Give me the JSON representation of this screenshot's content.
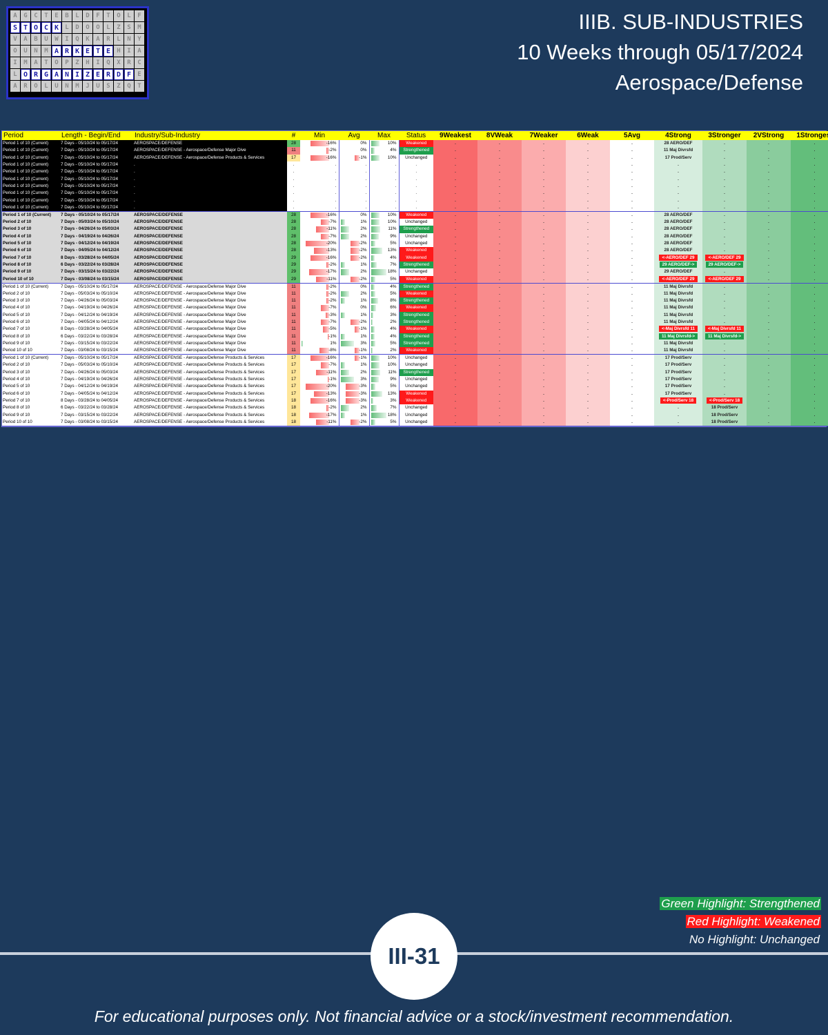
{
  "logo": {
    "rows": [
      [
        "A",
        "G",
        "C",
        "T",
        "E",
        "B",
        "L",
        "D",
        "F",
        "T",
        "O",
        "L",
        "F"
      ],
      [
        "S",
        "T",
        "O",
        "C",
        "K",
        "L",
        "D",
        "O",
        "O",
        "L",
        "Z",
        "S",
        "M"
      ],
      [
        "V",
        "A",
        "B",
        "U",
        "W",
        "I",
        "Q",
        "K",
        "A",
        "R",
        "L",
        "N",
        "Y"
      ],
      [
        "O",
        "U",
        "N",
        "M",
        "A",
        "R",
        "K",
        "E",
        "T",
        "E",
        "H",
        "I",
        "A"
      ],
      [
        "I",
        "M",
        "A",
        "T",
        "O",
        "P",
        "Z",
        "H",
        "I",
        "Q",
        "X",
        "R",
        "C"
      ],
      [
        "L",
        "O",
        "R",
        "G",
        "A",
        "N",
        "I",
        "Z",
        "E",
        "R",
        "D",
        "F",
        "E"
      ],
      [
        "A",
        "R",
        "O",
        "L",
        "U",
        "N",
        "M",
        "J",
        "U",
        "S",
        "Z",
        "Q",
        "T"
      ]
    ],
    "highlight": [
      [
        1,
        0
      ],
      [
        1,
        1
      ],
      [
        1,
        2
      ],
      [
        1,
        3
      ],
      [
        1,
        4
      ],
      [
        3,
        4
      ],
      [
        3,
        5
      ],
      [
        3,
        6
      ],
      [
        3,
        7
      ],
      [
        3,
        8
      ],
      [
        3,
        9
      ],
      [
        5,
        1
      ],
      [
        5,
        2
      ],
      [
        5,
        3
      ],
      [
        5,
        4
      ],
      [
        5,
        5
      ],
      [
        5,
        6
      ],
      [
        5,
        7
      ],
      [
        5,
        8
      ],
      [
        5,
        9
      ],
      [
        5,
        10
      ],
      [
        5,
        11
      ]
    ]
  },
  "header": {
    "line1": "IIIB. SUB-INDUSTRIES",
    "line2": "10 Weeks through 05/17/2024",
    "line3": "Aerospace/Defense"
  },
  "table": {
    "columns": [
      "Period",
      "Length - Begin/End",
      "Industry/Sub-Industry",
      "#",
      "Min",
      "Avg",
      "Max",
      "Status",
      "9Weakest",
      "8VWeak",
      "7Weaker",
      "6Weak",
      "5Avg",
      "4Strong",
      "3Stronger",
      "2VStrong",
      "1Strongest"
    ],
    "rows": [
      {
        "sec": "blk",
        "p": "Period 1 of 10 (Current)",
        "len": "7 Days - 05/10/24 to 05/17/24",
        "ind": "AEROSPACE/DEFENSE",
        "n": "28",
        "nc": "g",
        "min": "-16%",
        "avg": "0%",
        "max": "10%",
        "st": "Weakened",
        "sc": {
          "4": "28 AERO/DEF"
        }
      },
      {
        "sec": "blk",
        "p": "Period 1 of 10 (Current)",
        "len": "7 Days - 05/10/24 to 05/17/24",
        "ind": "AEROSPACE/DEFENSE - Aerospace/Defense Major Dive",
        "n": "11",
        "nc": "r",
        "min": "-2%",
        "avg": "0%",
        "max": "4%",
        "st": "Strengthened",
        "sc": {
          "4": "11 Maj Divrsfd"
        }
      },
      {
        "sec": "blk",
        "p": "Period 1 of 10 (Current)",
        "len": "7 Days - 05/10/24 to 05/17/24",
        "ind": "AEROSPACE/DEFENSE - Aerospace/Defense Products & Services",
        "n": "17",
        "nc": "y",
        "min": "-16%",
        "avg": "-1%",
        "max": "10%",
        "st": "Unchanged",
        "sc": {
          "4": "17 Prod/Serv"
        }
      },
      {
        "sec": "blk",
        "p": "Period 1 of 10 (Current)",
        "len": "7 Days - 05/10/24 to 05/17/24",
        "ind": ".",
        "n": ".",
        "nc": "w",
        "min": ".",
        "avg": ".",
        "max": ".",
        "st": ".",
        "sc": {}
      },
      {
        "sec": "blk",
        "p": "Period 1 of 10 (Current)",
        "len": "7 Days - 05/10/24 to 05/17/24",
        "ind": ".",
        "n": ".",
        "nc": "w",
        "min": ".",
        "avg": ".",
        "max": ".",
        "st": ".",
        "sc": {}
      },
      {
        "sec": "blk",
        "p": "Period 1 of 10 (Current)",
        "len": "7 Days - 05/10/24 to 05/17/24",
        "ind": ".",
        "n": ".",
        "nc": "w",
        "min": ".",
        "avg": ".",
        "max": ".",
        "st": ".",
        "sc": {}
      },
      {
        "sec": "blk",
        "p": "Period 1 of 10 (Current)",
        "len": "7 Days - 05/10/24 to 05/17/24",
        "ind": ".",
        "n": ".",
        "nc": "w",
        "min": ".",
        "avg": ".",
        "max": ".",
        "st": ".",
        "sc": {}
      },
      {
        "sec": "blk",
        "p": "Period 1 of 10 (Current)",
        "len": "7 Days - 05/10/24 to 05/17/24",
        "ind": ".",
        "n": ".",
        "nc": "w",
        "min": ".",
        "avg": ".",
        "max": ".",
        "st": ".",
        "sc": {}
      },
      {
        "sec": "blk",
        "p": "Period 1 of 10 (Current)",
        "len": "7 Days - 05/10/24 to 05/17/24",
        "ind": ".",
        "n": ".",
        "nc": "w",
        "min": ".",
        "avg": ".",
        "max": ".",
        "st": ".",
        "sc": {}
      },
      {
        "sec": "blk",
        "end": true,
        "p": "Period 1 of 10 (Current)",
        "len": "7 Days - 05/10/24 to 05/17/24",
        "ind": ".",
        "n": ".",
        "nc": "w",
        "min": ".",
        "avg": ".",
        "max": ".",
        "st": ".",
        "sc": {}
      },
      {
        "sec": "gry",
        "bold": true,
        "p": "Period 1 of 10 (Current)",
        "len": "7 Days - 05/10/24 to 05/17/24",
        "ind": "AEROSPACE/DEFENSE",
        "n": "28",
        "nc": "g",
        "min": "-16%",
        "avg": "0%",
        "max": "10%",
        "st": "Weakened",
        "sc": {
          "4": "28 AERO/DEF"
        }
      },
      {
        "sec": "gry",
        "bold": true,
        "p": "Period 2 of 10",
        "len": "7 Days - 05/03/24 to 05/10/24",
        "ind": "AEROSPACE/DEFENSE",
        "n": "28",
        "nc": "g",
        "min": "-7%",
        "avg": "1%",
        "max": "10%",
        "st": "Unchanged",
        "sc": {
          "4": "28 AERO/DEF"
        }
      },
      {
        "sec": "gry",
        "bold": true,
        "p": "Period 3 of 10",
        "len": "7 Days - 04/26/24 to 05/03/24",
        "ind": "AEROSPACE/DEFENSE",
        "n": "28",
        "nc": "g",
        "min": "-11%",
        "avg": "2%",
        "max": "11%",
        "st": "Strengthened",
        "sc": {
          "4": "28 AERO/DEF"
        }
      },
      {
        "sec": "gry",
        "bold": true,
        "p": "Period 4 of 10",
        "len": "7 Days - 04/19/24 to 04/26/24",
        "ind": "AEROSPACE/DEFENSE",
        "n": "28",
        "nc": "g",
        "min": "-7%",
        "avg": "2%",
        "max": "9%",
        "st": "Unchanged",
        "sc": {
          "4": "28 AERO/DEF"
        }
      },
      {
        "sec": "gry",
        "bold": true,
        "p": "Period 5 of 10",
        "len": "7 Days - 04/12/24 to 04/19/24",
        "ind": "AEROSPACE/DEFENSE",
        "n": "28",
        "nc": "g",
        "min": "-20%",
        "avg": "-2%",
        "max": "5%",
        "st": "Unchanged",
        "sc": {
          "4": "28 AERO/DEF"
        }
      },
      {
        "sec": "gry",
        "bold": true,
        "p": "Period 6 of 10",
        "len": "7 Days - 04/05/24 to 04/12/24",
        "ind": "AEROSPACE/DEFENSE",
        "n": "28",
        "nc": "g",
        "min": "-13%",
        "avg": "-2%",
        "max": "13%",
        "st": "Weakened",
        "sc": {
          "4": "28 AERO/DEF"
        }
      },
      {
        "sec": "gry",
        "bold": true,
        "p": "Period 7 of 10",
        "len": "8 Days - 03/28/24 to 04/05/24",
        "ind": "AEROSPACE/DEFENSE",
        "n": "29",
        "nc": "g",
        "min": "-16%",
        "avg": "-2%",
        "max": "4%",
        "st": "Weakened",
        "sc": {
          "4": "<-AERO/DEF 29",
          "3": "<-AERO/DEF 29"
        },
        "hl": "r"
      },
      {
        "sec": "gry",
        "bold": true,
        "p": "Period 8 of 10",
        "len": "6 Days - 03/22/24 to 03/28/24",
        "ind": "AEROSPACE/DEFENSE",
        "n": "29",
        "nc": "g",
        "min": "-2%",
        "avg": "1%",
        "max": "7%",
        "st": "Strengthened",
        "sc": {
          "4": "29 AERO/DEF->",
          "3": "29 AERO/DEF->"
        },
        "hl": "g"
      },
      {
        "sec": "gry",
        "bold": true,
        "p": "Period 9 of 10",
        "len": "7 Days - 03/15/24 to 03/22/24",
        "ind": "AEROSPACE/DEFENSE",
        "n": "29",
        "nc": "g",
        "min": "-17%",
        "avg": "2%",
        "max": "18%",
        "st": "Unchanged",
        "sc": {
          "4": "29 AERO/DEF"
        }
      },
      {
        "sec": "gry",
        "bold": true,
        "end": true,
        "p": "Period 10 of 10",
        "len": "7 Days - 03/08/24 to 03/15/24",
        "ind": "AEROSPACE/DEFENSE",
        "n": "29",
        "nc": "g",
        "min": "-11%",
        "avg": "-2%",
        "max": "5%",
        "st": "Weakened",
        "sc": {
          "4": "<-AERO/DEF 29",
          "3": "<-AERO/DEF 29"
        },
        "hl": "r"
      },
      {
        "sec": "wht",
        "p": "Period 1 of 10 (Current)",
        "len": "7 Days - 05/10/24 to 05/17/24",
        "ind": "AEROSPACE/DEFENSE - Aerospace/Defense Major Dive",
        "n": "11",
        "nc": "r",
        "min": "-2%",
        "avg": "0%",
        "max": "4%",
        "st": "Strengthened",
        "sc": {
          "4": "11 Maj Divrsfd"
        }
      },
      {
        "sec": "wht",
        "p": "Period 2 of 10",
        "len": "7 Days - 05/03/24 to 05/10/24",
        "ind": "AEROSPACE/DEFENSE - Aerospace/Defense Major Dive",
        "n": "11",
        "nc": "r",
        "min": "-2%",
        "avg": "2%",
        "max": "5%",
        "st": "Weakened",
        "sc": {
          "4": "11 Maj Divrsfd"
        }
      },
      {
        "sec": "wht",
        "p": "Period 3 of 10",
        "len": "7 Days - 04/26/24 to 05/03/24",
        "ind": "AEROSPACE/DEFENSE - Aerospace/Defense Major Dive",
        "n": "11",
        "nc": "r",
        "min": "-2%",
        "avg": "1%",
        "max": "8%",
        "st": "Strengthened",
        "sc": {
          "4": "11 Maj Divrsfd"
        }
      },
      {
        "sec": "wht",
        "p": "Period 4 of 10",
        "len": "7 Days - 04/19/24 to 04/26/24",
        "ind": "AEROSPACE/DEFENSE - Aerospace/Defense Major Dive",
        "n": "11",
        "nc": "r",
        "min": "-7%",
        "avg": "0%",
        "max": "6%",
        "st": "Weakened",
        "sc": {
          "4": "11 Maj Divrsfd"
        }
      },
      {
        "sec": "wht",
        "p": "Period 5 of 10",
        "len": "7 Days - 04/12/24 to 04/19/24",
        "ind": "AEROSPACE/DEFENSE - Aerospace/Defense Major Dive",
        "n": "11",
        "nc": "r",
        "min": "-3%",
        "avg": "1%",
        "max": "3%",
        "st": "Strengthened",
        "sc": {
          "4": "11 Maj Divrsfd"
        }
      },
      {
        "sec": "wht",
        "p": "Period 6 of 10",
        "len": "7 Days - 04/05/24 to 04/12/24",
        "ind": "AEROSPACE/DEFENSE - Aerospace/Defense Major Dive",
        "n": "11",
        "nc": "r",
        "min": "-7%",
        "avg": "-2%",
        "max": "2%",
        "st": "Strengthened",
        "sc": {
          "4": "11 Maj Divrsfd"
        }
      },
      {
        "sec": "wht",
        "p": "Period 7 of 10",
        "len": "8 Days - 03/28/24 to 04/05/24",
        "ind": "AEROSPACE/DEFENSE - Aerospace/Defense Major Dive",
        "n": "11",
        "nc": "r",
        "min": "-5%",
        "avg": "-1%",
        "max": "4%",
        "st": "Weakened",
        "sc": {
          "4": "<-Maj Divrsfd 11",
          "3": "<-Maj Divrsfd 11"
        },
        "hl": "r"
      },
      {
        "sec": "wht",
        "p": "Period 8 of 10",
        "len": "6 Days - 03/22/24 to 03/28/24",
        "ind": "AEROSPACE/DEFENSE - Aerospace/Defense Major Dive",
        "n": "11",
        "nc": "r",
        "min": "-1%",
        "avg": "1%",
        "max": "4%",
        "st": "Strengthened",
        "sc": {
          "4": "11 Maj Divrsfd->",
          "3": "11 Maj Divrsfd->"
        },
        "hl": "g"
      },
      {
        "sec": "wht",
        "p": "Period 9 of 10",
        "len": "7 Days - 03/15/24 to 03/22/24",
        "ind": "AEROSPACE/DEFENSE - Aerospace/Defense Major Dive",
        "n": "11",
        "nc": "r",
        "min": "1%",
        "avg": "3%",
        "max": "5%",
        "st": "Strengthened",
        "sc": {
          "4": "11 Maj Divrsfd"
        }
      },
      {
        "sec": "wht",
        "end": true,
        "p": "Period 10 of 10",
        "len": "7 Days - 03/08/24 to 03/15/24",
        "ind": "AEROSPACE/DEFENSE - Aerospace/Defense Major Dive",
        "n": "11",
        "nc": "r",
        "min": "-8%",
        "avg": "-1%",
        "max": "2%",
        "st": "Weakened",
        "sc": {
          "4": "11 Maj Divrsfd"
        }
      },
      {
        "sec": "wht",
        "p": "Period 1 of 10 (Current)",
        "len": "7 Days - 05/10/24 to 05/17/24",
        "ind": "AEROSPACE/DEFENSE - Aerospace/Defense Products & Services",
        "n": "17",
        "nc": "y",
        "min": "-16%",
        "avg": "-1%",
        "max": "10%",
        "st": "Unchanged",
        "sc": {
          "4": "17 Prod/Serv"
        }
      },
      {
        "sec": "wht",
        "p": "Period 2 of 10",
        "len": "7 Days - 05/03/24 to 05/10/24",
        "ind": "AEROSPACE/DEFENSE - Aerospace/Defense Products & Services",
        "n": "17",
        "nc": "y",
        "min": "-7%",
        "avg": "1%",
        "max": "10%",
        "st": "Unchanged",
        "sc": {
          "4": "17 Prod/Serv"
        }
      },
      {
        "sec": "wht",
        "p": "Period 3 of 10",
        "len": "7 Days - 04/26/24 to 05/03/24",
        "ind": "AEROSPACE/DEFENSE - Aerospace/Defense Products & Services",
        "n": "17",
        "nc": "y",
        "min": "-11%",
        "avg": "2%",
        "max": "11%",
        "st": "Strengthened",
        "sc": {
          "4": "17 Prod/Serv"
        }
      },
      {
        "sec": "wht",
        "p": "Period 4 of 10",
        "len": "7 Days - 04/19/24 to 04/26/24",
        "ind": "AEROSPACE/DEFENSE - Aerospace/Defense Products & Services",
        "n": "17",
        "nc": "y",
        "min": "-1%",
        "avg": "3%",
        "max": "9%",
        "st": "Unchanged",
        "sc": {
          "4": "17 Prod/Serv"
        }
      },
      {
        "sec": "wht",
        "p": "Period 5 of 10",
        "len": "7 Days - 04/12/24 to 04/19/24",
        "ind": "AEROSPACE/DEFENSE - Aerospace/Defense Products & Services",
        "n": "17",
        "nc": "y",
        "min": "-20%",
        "avg": "-3%",
        "max": "5%",
        "st": "Unchanged",
        "sc": {
          "4": "17 Prod/Serv"
        }
      },
      {
        "sec": "wht",
        "p": "Period 6 of 10",
        "len": "7 Days - 04/05/24 to 04/12/24",
        "ind": "AEROSPACE/DEFENSE - Aerospace/Defense Products & Services",
        "n": "17",
        "nc": "y",
        "min": "-13%",
        "avg": "-3%",
        "max": "13%",
        "st": "Weakened",
        "sc": {
          "4": "17 Prod/Serv"
        }
      },
      {
        "sec": "wht",
        "p": "Period 7 of 10",
        "len": "8 Days - 03/28/24 to 04/05/24",
        "ind": "AEROSPACE/DEFENSE - Aerospace/Defense Products & Services",
        "n": "18",
        "nc": "y",
        "min": "-16%",
        "avg": "-3%",
        "max": "3%",
        "st": "Weakened",
        "sc": {
          "4": "<-Prod/Serv 18",
          "3": "<-Prod/Serv 18"
        },
        "hl": "r"
      },
      {
        "sec": "wht",
        "p": "Period 8 of 10",
        "len": "6 Days - 03/22/24 to 03/28/24",
        "ind": "AEROSPACE/DEFENSE - Aerospace/Defense Products & Services",
        "n": "18",
        "nc": "y",
        "min": "-2%",
        "avg": "2%",
        "max": "7%",
        "st": "Unchanged",
        "sc": {
          "3": "18 Prod/Serv"
        }
      },
      {
        "sec": "wht",
        "p": "Period 9 of 10",
        "len": "7 Days - 03/15/24 to 03/22/24",
        "ind": "AEROSPACE/DEFENSE - Aerospace/Defense Products & Services",
        "n": "18",
        "nc": "y",
        "min": "-17%",
        "avg": "1%",
        "max": "18%",
        "st": "Unchanged",
        "sc": {
          "3": "18 Prod/Serv"
        }
      },
      {
        "sec": "wht",
        "end": true,
        "p": "Period 10 of 10",
        "len": "7 Days - 03/08/24 to 03/15/24",
        "ind": "AEROSPACE/DEFENSE - Aerospace/Defense Products & Services",
        "n": "18",
        "nc": "y",
        "min": "-11%",
        "avg": "-2%",
        "max": "5%",
        "st": "Unchanged",
        "sc": {
          "3": "18 Prod/Serv"
        }
      }
    ]
  },
  "legend": {
    "green": "Green Highlight: Strengthened",
    "red": "Red Highlight: Weakened",
    "none": "No Highlight: Unchanged"
  },
  "page_number": "III-31",
  "disclaimer": "For educational purposes only. Not financial advice or a stock/investment recommendation.",
  "colors": {
    "background": "#1d3a5c",
    "header_yellow": "#ffff00",
    "strengthened": "#1e9e4c",
    "weakened": "#ff1a1a"
  }
}
